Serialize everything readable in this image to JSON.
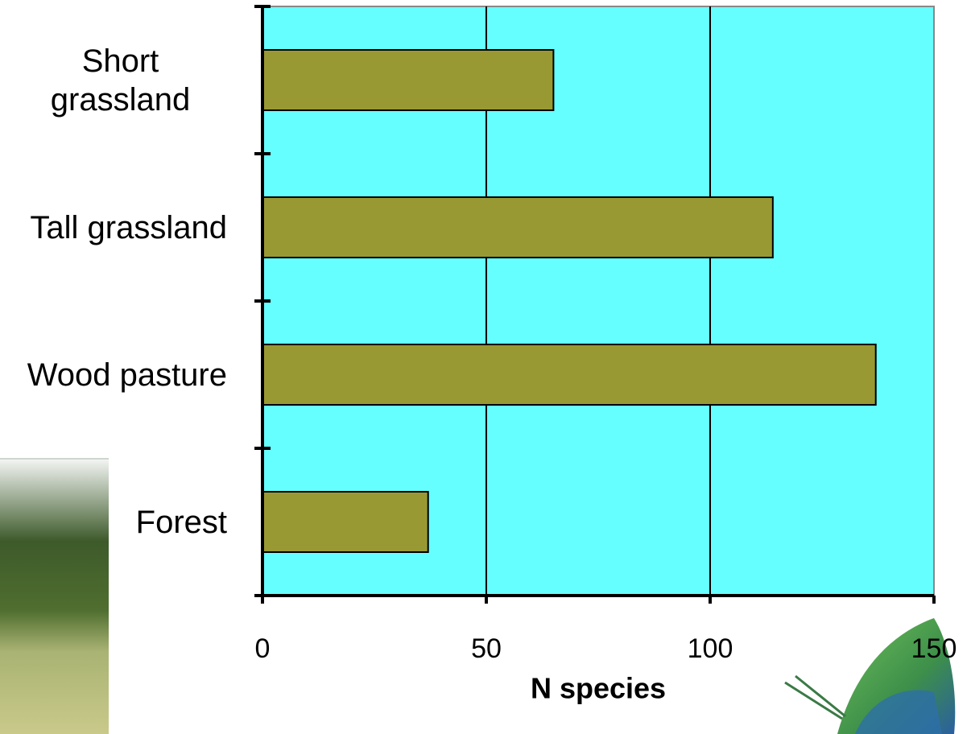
{
  "chart_data": {
    "type": "bar",
    "orientation": "horizontal",
    "categories": [
      "Short grassland",
      "Tall grassland",
      "Wood pasture",
      "Forest"
    ],
    "values": [
      65,
      114,
      137,
      37
    ],
    "color": "#999933",
    "plot_background": "#66ffff",
    "xlim": [
      0,
      150
    ],
    "xticks": [
      0,
      50,
      100,
      150
    ],
    "xlabel": "N species",
    "grid": true
  }
}
